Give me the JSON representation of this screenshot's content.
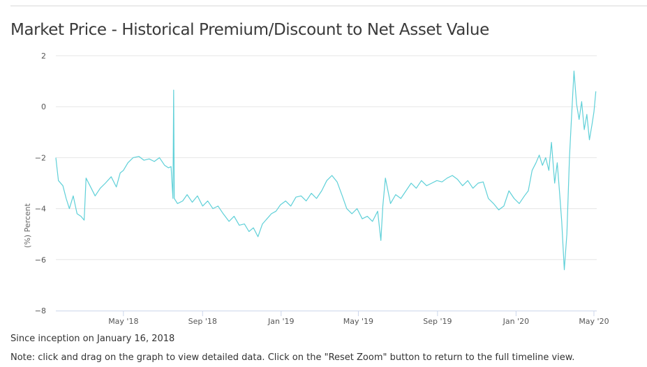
{
  "page": {
    "title": "Market Price - Historical Premium/Discount to Net Asset Value",
    "since_note": "Since inception on January 16, 2018",
    "zoom_note": "Note: click and drag on the graph to view detailed data. Click on the \"Reset Zoom\" button to return to the full timeline view."
  },
  "chart_data": {
    "type": "line",
    "title": "Market Price - Historical Premium/Discount to Net Asset Value",
    "xlabel": "",
    "ylabel": "(%) Percent",
    "ylim": [
      -8,
      2
    ],
    "yticks": [
      2,
      0,
      -2,
      -4,
      -6,
      -8
    ],
    "xlim": [
      "2018-01-16",
      "2020-05-04"
    ],
    "xticks": [
      {
        "date": "2018-05-01",
        "label": "May '18"
      },
      {
        "date": "2018-09-01",
        "label": "Sep '18"
      },
      {
        "date": "2019-01-01",
        "label": "Jan '19"
      },
      {
        "date": "2019-05-01",
        "label": "May '19"
      },
      {
        "date": "2019-09-01",
        "label": "Sep '19"
      },
      {
        "date": "2020-01-01",
        "label": "Jan '20"
      },
      {
        "date": "2020-05-01",
        "label": "May '20"
      }
    ],
    "grid": true,
    "legend": "none",
    "series": [
      {
        "color": "#5fd0d8",
        "points": [
          [
            "2018-01-16",
            -2.0
          ],
          [
            "2018-01-20",
            -2.9
          ],
          [
            "2018-01-27",
            -3.1
          ],
          [
            "2018-02-01",
            -3.6
          ],
          [
            "2018-02-06",
            -4.0
          ],
          [
            "2018-02-12",
            -3.5
          ],
          [
            "2018-02-18",
            -4.2
          ],
          [
            "2018-02-24",
            -4.3
          ],
          [
            "2018-03-01",
            -4.45
          ],
          [
            "2018-03-04",
            -2.8
          ],
          [
            "2018-03-10",
            -3.1
          ],
          [
            "2018-03-18",
            -3.5
          ],
          [
            "2018-03-26",
            -3.2
          ],
          [
            "2018-04-03",
            -3.0
          ],
          [
            "2018-04-12",
            -2.75
          ],
          [
            "2018-04-20",
            -3.15
          ],
          [
            "2018-04-26",
            -2.6
          ],
          [
            "2018-05-01",
            -2.5
          ],
          [
            "2018-05-08",
            -2.2
          ],
          [
            "2018-05-16",
            -2.0
          ],
          [
            "2018-05-25",
            -1.95
          ],
          [
            "2018-06-02",
            -2.1
          ],
          [
            "2018-06-10",
            -2.05
          ],
          [
            "2018-06-18",
            -2.15
          ],
          [
            "2018-06-26",
            -2.0
          ],
          [
            "2018-07-04",
            -2.3
          ],
          [
            "2018-07-10",
            -2.4
          ],
          [
            "2018-07-14",
            -2.35
          ],
          [
            "2018-07-17",
            -3.6
          ],
          [
            "2018-07-18",
            0.65
          ],
          [
            "2018-07-19",
            -3.6
          ],
          [
            "2018-07-24",
            -3.8
          ],
          [
            "2018-08-01",
            -3.7
          ],
          [
            "2018-08-08",
            -3.45
          ],
          [
            "2018-08-16",
            -3.75
          ],
          [
            "2018-08-24",
            -3.5
          ],
          [
            "2018-09-01",
            -3.9
          ],
          [
            "2018-09-09",
            -3.7
          ],
          [
            "2018-09-17",
            -4.0
          ],
          [
            "2018-09-25",
            -3.9
          ],
          [
            "2018-10-03",
            -4.2
          ],
          [
            "2018-10-12",
            -4.5
          ],
          [
            "2018-10-20",
            -4.3
          ],
          [
            "2018-10-28",
            -4.65
          ],
          [
            "2018-11-05",
            -4.6
          ],
          [
            "2018-11-12",
            -4.9
          ],
          [
            "2018-11-19",
            -4.75
          ],
          [
            "2018-11-26",
            -5.1
          ],
          [
            "2018-12-03",
            -4.6
          ],
          [
            "2018-12-10",
            -4.4
          ],
          [
            "2018-12-17",
            -4.2
          ],
          [
            "2018-12-24",
            -4.1
          ],
          [
            "2018-12-31",
            -3.85
          ],
          [
            "2019-01-08",
            -3.7
          ],
          [
            "2019-01-16",
            -3.9
          ],
          [
            "2019-01-24",
            -3.55
          ],
          [
            "2019-02-01",
            -3.5
          ],
          [
            "2019-02-09",
            -3.7
          ],
          [
            "2019-02-17",
            -3.4
          ],
          [
            "2019-02-25",
            -3.6
          ],
          [
            "2019-03-05",
            -3.3
          ],
          [
            "2019-03-13",
            -2.9
          ],
          [
            "2019-03-21",
            -2.7
          ],
          [
            "2019-03-29",
            -2.95
          ],
          [
            "2019-04-06",
            -3.5
          ],
          [
            "2019-04-13",
            -4.0
          ],
          [
            "2019-04-21",
            -4.2
          ],
          [
            "2019-04-29",
            -4.0
          ],
          [
            "2019-05-07",
            -4.4
          ],
          [
            "2019-05-15",
            -4.3
          ],
          [
            "2019-05-23",
            -4.5
          ],
          [
            "2019-05-31",
            -4.1
          ],
          [
            "2019-06-05",
            -5.25
          ],
          [
            "2019-06-08",
            -3.9
          ],
          [
            "2019-06-12",
            -2.8
          ],
          [
            "2019-06-20",
            -3.8
          ],
          [
            "2019-06-28",
            -3.45
          ],
          [
            "2019-07-06",
            -3.6
          ],
          [
            "2019-07-14",
            -3.3
          ],
          [
            "2019-07-22",
            -3.0
          ],
          [
            "2019-07-30",
            -3.2
          ],
          [
            "2019-08-07",
            -2.9
          ],
          [
            "2019-08-15",
            -3.1
          ],
          [
            "2019-08-23",
            -3.0
          ],
          [
            "2019-08-31",
            -2.9
          ],
          [
            "2019-09-08",
            -2.95
          ],
          [
            "2019-09-16",
            -2.8
          ],
          [
            "2019-09-24",
            -2.7
          ],
          [
            "2019-10-02",
            -2.85
          ],
          [
            "2019-10-10",
            -3.1
          ],
          [
            "2019-10-18",
            -2.9
          ],
          [
            "2019-10-26",
            -3.2
          ],
          [
            "2019-11-03",
            -3.0
          ],
          [
            "2019-11-11",
            -2.95
          ],
          [
            "2019-11-19",
            -3.6
          ],
          [
            "2019-11-27",
            -3.8
          ],
          [
            "2019-12-05",
            -4.05
          ],
          [
            "2019-12-13",
            -3.9
          ],
          [
            "2019-12-21",
            -3.3
          ],
          [
            "2019-12-29",
            -3.6
          ],
          [
            "2020-01-06",
            -3.8
          ],
          [
            "2020-01-14",
            -3.5
          ],
          [
            "2020-01-20",
            -3.3
          ],
          [
            "2020-01-26",
            -2.5
          ],
          [
            "2020-02-01",
            -2.2
          ],
          [
            "2020-02-06",
            -1.9
          ],
          [
            "2020-02-11",
            -2.3
          ],
          [
            "2020-02-16",
            -2.0
          ],
          [
            "2020-02-21",
            -2.5
          ],
          [
            "2020-02-25",
            -1.4
          ],
          [
            "2020-03-01",
            -3.0
          ],
          [
            "2020-03-05",
            -2.2
          ],
          [
            "2020-03-09",
            -3.5
          ],
          [
            "2020-03-12",
            -4.5
          ],
          [
            "2020-03-16",
            -6.4
          ],
          [
            "2020-03-20",
            -5.0
          ],
          [
            "2020-03-24",
            -2.0
          ],
          [
            "2020-03-27",
            -0.5
          ],
          [
            "2020-03-31",
            1.4
          ],
          [
            "2020-04-04",
            0.1
          ],
          [
            "2020-04-08",
            -0.5
          ],
          [
            "2020-04-12",
            0.2
          ],
          [
            "2020-04-16",
            -0.9
          ],
          [
            "2020-04-20",
            -0.3
          ],
          [
            "2020-04-24",
            -1.3
          ],
          [
            "2020-04-28",
            -0.7
          ],
          [
            "2020-05-01",
            -0.2
          ],
          [
            "2020-05-04",
            0.6
          ]
        ]
      }
    ]
  }
}
